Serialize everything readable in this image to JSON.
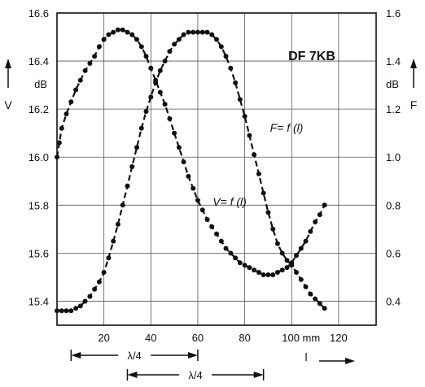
{
  "chart_data": {
    "type": "line",
    "title": "DF 7KB",
    "x_axis": {
      "range": [
        0,
        120
      ],
      "ticks": [
        20,
        40,
        60,
        80,
        100,
        120
      ],
      "tick_labels": [
        "20",
        "40",
        "60",
        "80",
        "100 mm",
        "120"
      ],
      "label": "l"
    },
    "y_left": {
      "range": [
        15.3,
        16.6
      ],
      "ticks": [
        16.6,
        16.4,
        16.2,
        16.0,
        15.8,
        15.6,
        15.4
      ],
      "tick_labels": [
        "16.6",
        "16.4",
        "16.2",
        "16.0",
        "15.8",
        "15.6",
        "15.4"
      ],
      "unit": "dB",
      "label": "V"
    },
    "y_right": {
      "range": [
        0.3,
        1.6
      ],
      "ticks": [
        1.6,
        1.4,
        1.2,
        1.0,
        0.8,
        0.6,
        0.4
      ],
      "tick_labels": [
        "1.6",
        "1.4",
        "1.2",
        "1.0",
        "0.8",
        "0.6",
        "0.4"
      ],
      "unit": "dB",
      "label": "F"
    },
    "grid": true,
    "series": [
      {
        "name": "V= f (l)",
        "axis": "left",
        "x": [
          0,
          1,
          2,
          4,
          6,
          8,
          10,
          12,
          14,
          16,
          18,
          20,
          22,
          24,
          26,
          28,
          30,
          32,
          34,
          36,
          38,
          40,
          42,
          44,
          46,
          48,
          50,
          52,
          54,
          56,
          58,
          60,
          62,
          64,
          66,
          68,
          70,
          72,
          74,
          76,
          78,
          80,
          82,
          84,
          86,
          88,
          90,
          92,
          94,
          96,
          98,
          100,
          102,
          104,
          106,
          108,
          110,
          112,
          114
        ],
        "y": [
          16.0,
          16.06,
          16.12,
          16.18,
          16.23,
          16.28,
          16.32,
          16.36,
          16.39,
          16.42,
          16.46,
          16.49,
          16.51,
          16.52,
          16.53,
          16.53,
          16.52,
          16.51,
          16.49,
          16.46,
          16.42,
          16.37,
          16.32,
          16.27,
          16.22,
          16.16,
          16.1,
          16.04,
          15.98,
          15.92,
          15.87,
          15.82,
          15.78,
          15.74,
          15.71,
          15.68,
          15.65,
          15.62,
          15.6,
          15.58,
          15.56,
          15.55,
          15.54,
          15.53,
          15.52,
          15.51,
          15.51,
          15.51,
          15.52,
          15.53,
          15.54,
          15.56,
          15.59,
          15.62,
          15.65,
          15.69,
          15.73,
          15.76,
          15.8
        ]
      },
      {
        "name": "F= f (l)",
        "axis": "right",
        "x": [
          0,
          2,
          4,
          6,
          8,
          10,
          12,
          14,
          16,
          18,
          20,
          22,
          24,
          26,
          28,
          30,
          32,
          34,
          36,
          38,
          40,
          42,
          44,
          46,
          48,
          50,
          52,
          54,
          56,
          58,
          60,
          62,
          64,
          66,
          68,
          70,
          72,
          74,
          76,
          78,
          80,
          82,
          84,
          86,
          88,
          90,
          92,
          94,
          96,
          98,
          100,
          102,
          104,
          106,
          108,
          110,
          112,
          114
        ],
        "y": [
          0.36,
          0.36,
          0.36,
          0.36,
          0.37,
          0.38,
          0.4,
          0.42,
          0.45,
          0.48,
          0.52,
          0.58,
          0.65,
          0.72,
          0.8,
          0.88,
          0.96,
          1.04,
          1.12,
          1.19,
          1.25,
          1.31,
          1.36,
          1.4,
          1.44,
          1.47,
          1.49,
          1.51,
          1.52,
          1.52,
          1.52,
          1.52,
          1.52,
          1.51,
          1.49,
          1.46,
          1.42,
          1.37,
          1.31,
          1.24,
          1.17,
          1.09,
          1.01,
          0.93,
          0.85,
          0.77,
          0.7,
          0.64,
          0.6,
          0.57,
          0.55,
          0.52,
          0.49,
          0.46,
          0.43,
          0.41,
          0.39,
          0.37
        ]
      }
    ],
    "annotations": [
      {
        "text": "DF 7KB",
        "kind": "box-label"
      },
      {
        "text": "F= f (l)",
        "kind": "curve-label"
      },
      {
        "text": "V= f (l)",
        "kind": "curve-label"
      },
      {
        "text": "λ/4",
        "kind": "span",
        "x_range": [
          6,
          60
        ]
      },
      {
        "text": "λ/4",
        "kind": "span",
        "x_range": [
          30,
          88
        ]
      }
    ]
  }
}
